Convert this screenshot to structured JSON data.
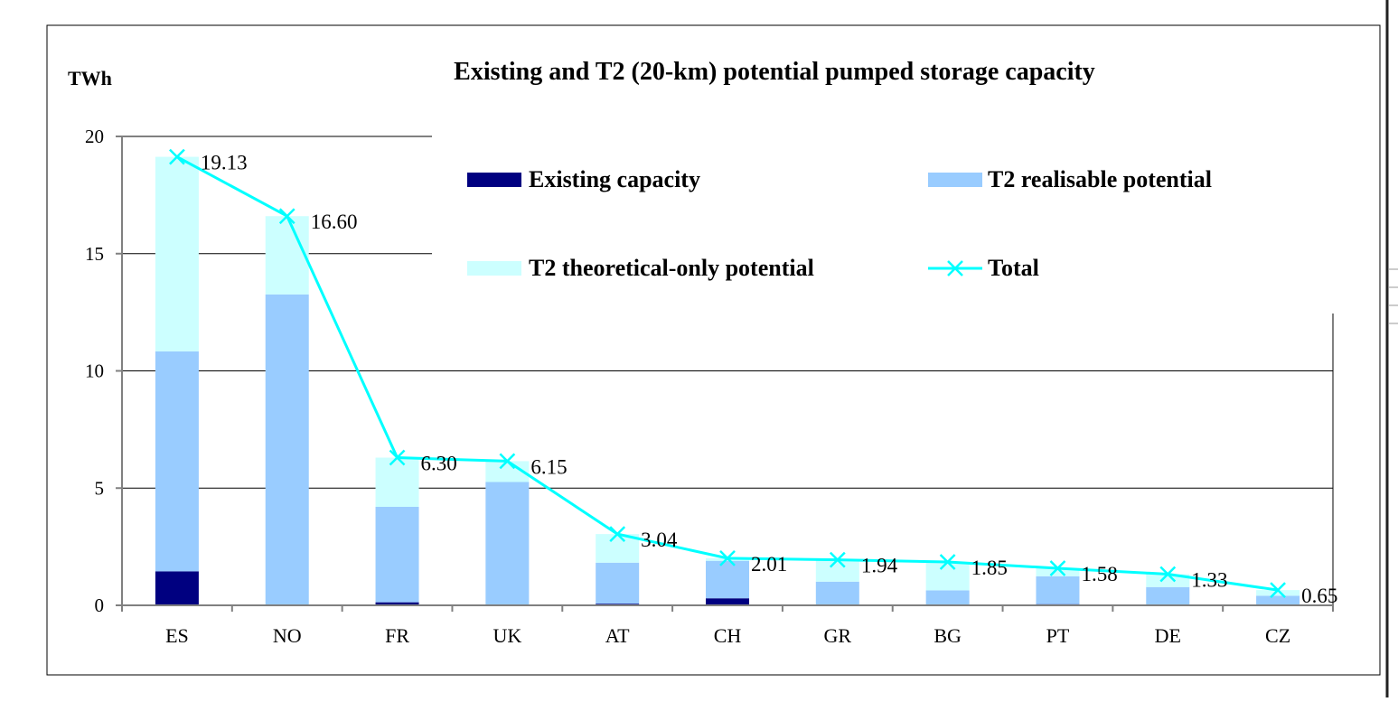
{
  "chart_data": {
    "type": "bar",
    "stacked": true,
    "title": "Existing and T2 (20-km) potential pumped storage capacity",
    "ylabel": "TWh",
    "xlabel": "",
    "ylim": [
      0,
      20
    ],
    "yticks": [
      0,
      5,
      10,
      15,
      20
    ],
    "grid": true,
    "legend_position": "top-right",
    "categories": [
      "ES",
      "NO",
      "FR",
      "UK",
      "AT",
      "CH",
      "GR",
      "BG",
      "PT",
      "DE",
      "CZ"
    ],
    "series": [
      {
        "name": "Existing capacity",
        "type": "bar",
        "color": "#000080",
        "values": [
          1.45,
          0,
          0.13,
          0,
          0.07,
          0.3,
          0,
          0,
          0.05,
          0,
          0
        ]
      },
      {
        "name": "T2 realisable potential",
        "type": "bar",
        "color": "#99ccff",
        "values": [
          9.38,
          13.26,
          4.07,
          5.26,
          1.75,
          1.6,
          1.01,
          0.64,
          1.19,
          0.78,
          0.41
        ]
      },
      {
        "name": "T2 theoretical-only potential",
        "type": "bar",
        "color": "#ccffff",
        "values": [
          8.3,
          3.34,
          2.1,
          0.89,
          1.22,
          0.11,
          0.93,
          1.21,
          0.34,
          0.55,
          0.24
        ]
      },
      {
        "name": "Total",
        "type": "line",
        "color": "#00ffff",
        "marker": "x",
        "values": [
          19.13,
          16.6,
          6.3,
          6.15,
          3.04,
          2.01,
          1.94,
          1.85,
          1.58,
          1.33,
          0.65
        ],
        "labels": [
          "19.13",
          "16.60",
          "6.30",
          "6.15",
          "3.04",
          "2.01",
          "1.94",
          "1.85",
          "1.58",
          "1.33",
          "0.65"
        ]
      }
    ]
  }
}
